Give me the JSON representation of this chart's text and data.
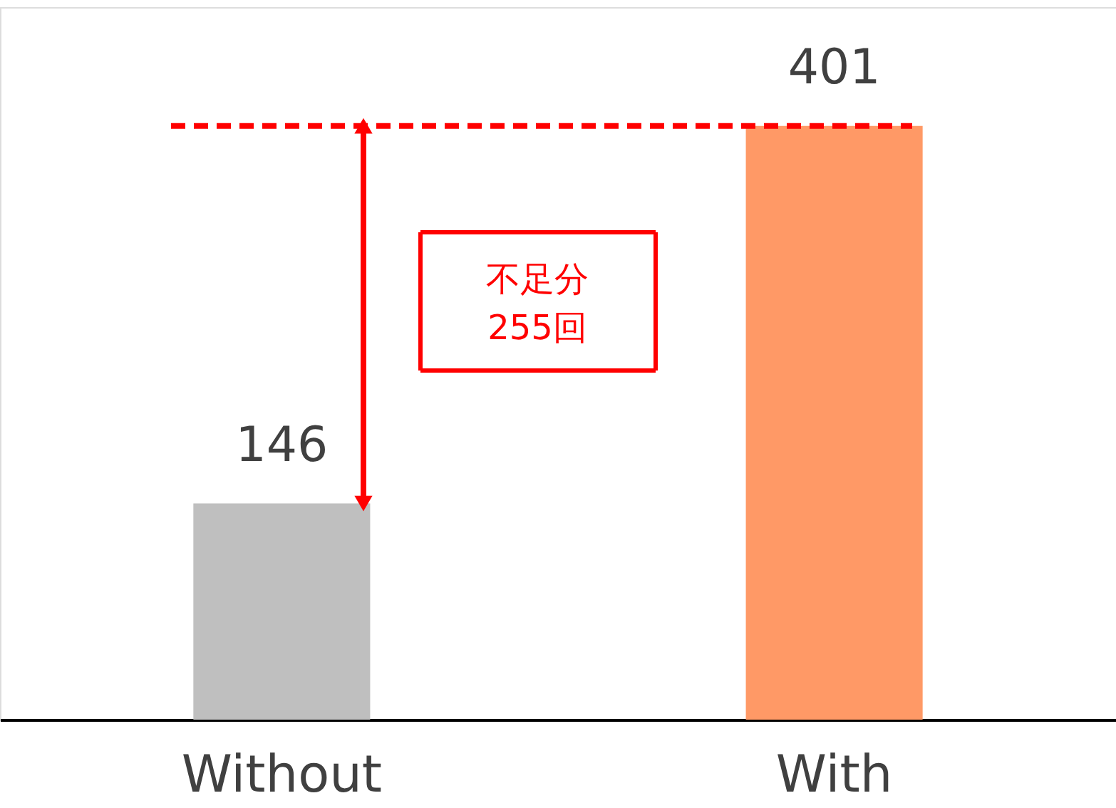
{
  "chart_data": {
    "type": "bar",
    "categories": [
      "Without",
      "With"
    ],
    "values": [
      146,
      401
    ],
    "colors": [
      "#bfbfbf",
      "#ff9966"
    ],
    "data_labels": true,
    "ref_lines": [
      {
        "axis": "y",
        "value": 401,
        "color": "#ff0000",
        "line_style": "dashed"
      }
    ],
    "annotations": [
      "不足分\n255回"
    ],
    "grid": false
  }
}
